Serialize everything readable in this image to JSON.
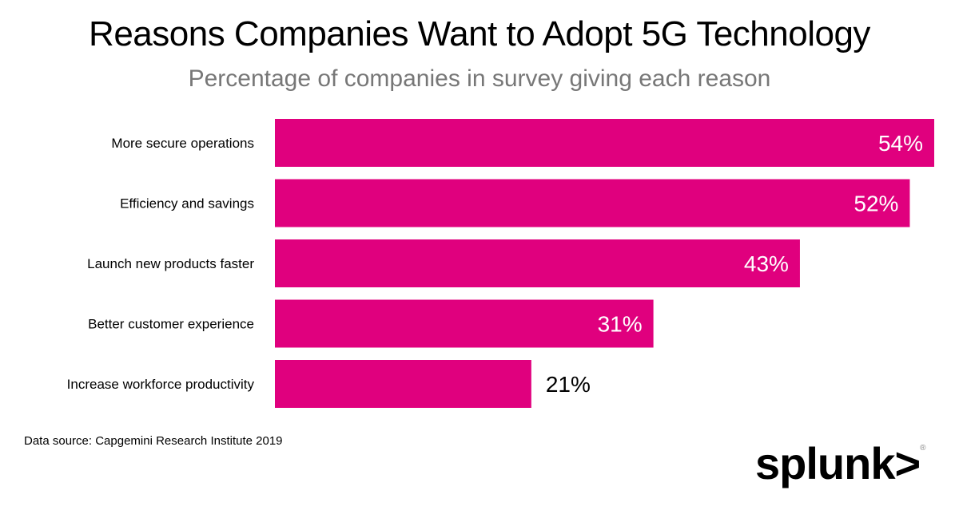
{
  "chart_data": {
    "type": "bar",
    "orientation": "horizontal",
    "title": "Reasons Companies Want to Adopt 5G Technology",
    "subtitle": "Percentage of companies in survey giving each reason",
    "categories": [
      "More secure operations",
      "Efficiency and savings",
      "Launch new products faster",
      "Better customer experience",
      "Increase workforce productivity"
    ],
    "values": [
      54,
      52,
      43,
      31,
      21
    ],
    "data_labels": [
      "54%",
      "52%",
      "43%",
      "31%",
      "21%"
    ],
    "xlim": [
      0,
      54
    ],
    "grid": false,
    "bar_color": "#e0007e"
  },
  "source": "Data source: Capgemini Research Institute 2019",
  "logo": {
    "text": "splunk>",
    "registered": "®"
  }
}
